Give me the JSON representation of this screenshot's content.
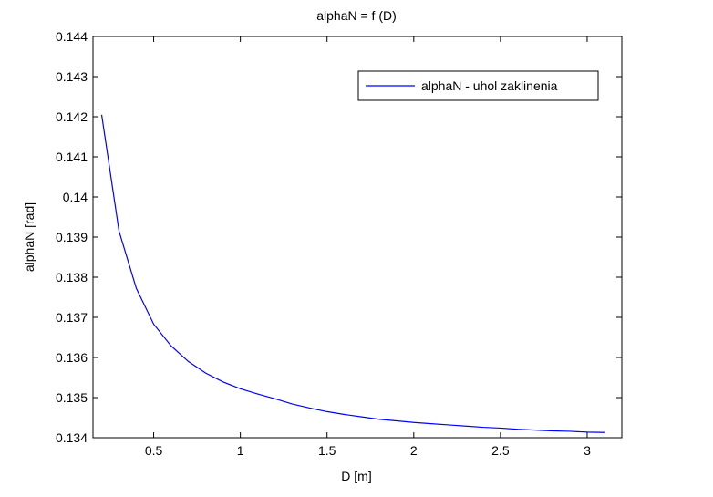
{
  "chart_data": {
    "type": "line",
    "title": "alphaN = f (D)",
    "xlabel": "D [m]",
    "ylabel": "alphaN [rad]",
    "xlim": [
      0.15,
      3.2
    ],
    "ylim": [
      0.134,
      0.144
    ],
    "xticks": [
      0.5,
      1,
      1.5,
      2,
      2.5,
      3
    ],
    "xtick_labels": [
      "0.5",
      "1",
      "1.5",
      "2",
      "2.5",
      "3"
    ],
    "yticks": [
      0.134,
      0.135,
      0.136,
      0.137,
      0.138,
      0.139,
      0.14,
      0.141,
      0.142,
      0.143,
      0.144
    ],
    "ytick_labels": [
      "0.134",
      "0.135",
      "0.136",
      "0.137",
      "0.138",
      "0.139",
      "0.14",
      "0.141",
      "0.142",
      "0.143",
      "0.144"
    ],
    "grid": false,
    "legend_position": "top-right",
    "series": [
      {
        "name": "alphaN - uhol zaklinenia",
        "color": "#0000ff",
        "x": [
          0.2,
          0.3,
          0.4,
          0.5,
          0.6,
          0.7,
          0.8,
          0.9,
          1.0,
          1.1,
          1.2,
          1.3,
          1.4,
          1.5,
          1.6,
          1.7,
          1.8,
          1.9,
          2.0,
          2.1,
          2.2,
          2.3,
          2.4,
          2.5,
          2.6,
          2.7,
          2.8,
          2.9,
          3.0,
          3.1
        ],
        "y": [
          0.14205,
          0.13915,
          0.13772,
          0.13683,
          0.13629,
          0.1359,
          0.13561,
          0.13539,
          0.13522,
          0.13509,
          0.13497,
          0.13484,
          0.13474,
          0.13465,
          0.13458,
          0.13452,
          0.13446,
          0.13442,
          0.13438,
          0.13435,
          0.13432,
          0.13429,
          0.13426,
          0.13424,
          0.13421,
          0.13419,
          0.13417,
          0.13416,
          0.13414,
          0.13413
        ]
      }
    ]
  }
}
